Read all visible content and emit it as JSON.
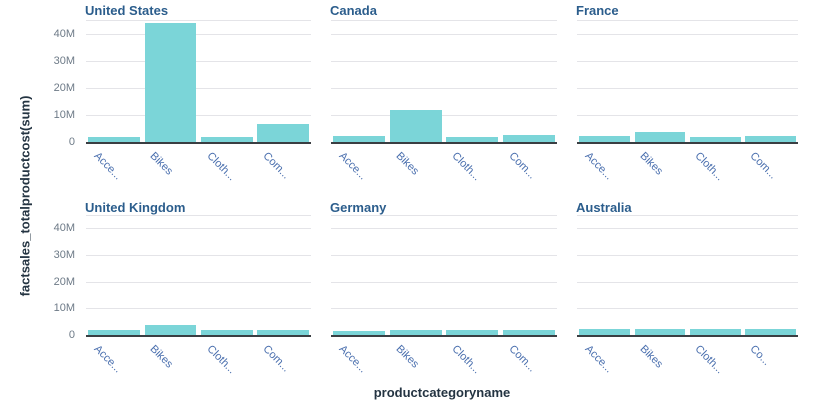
{
  "chart_data": {
    "type": "bar",
    "title": "",
    "xlabel": "productcategoryname",
    "ylabel": "factsales_totalproductcost(sum)",
    "ylim": [
      0,
      45000000
    ],
    "grid": true,
    "facet_layout": "2 rows x 3 columns",
    "yticks": [
      {
        "value": 0,
        "label": "0"
      },
      {
        "value": 10000000,
        "label": "10M"
      },
      {
        "value": 20000000,
        "label": "20M"
      },
      {
        "value": 30000000,
        "label": "30M"
      },
      {
        "value": 40000000,
        "label": "40M"
      }
    ],
    "panels": [
      {
        "title": "United States",
        "categories": [
          "Acce...",
          "Bikes",
          "Cloth...",
          "Com..."
        ],
        "values": [
          2000000,
          44000000,
          2000000,
          6800000
        ]
      },
      {
        "title": "Canada",
        "categories": [
          "Acce...",
          "Bikes",
          "Cloth...",
          "Com..."
        ],
        "values": [
          2200000,
          11800000,
          2000000,
          2600000
        ]
      },
      {
        "title": "France",
        "categories": [
          "Acce...",
          "Bikes",
          "Cloth...",
          "Com..."
        ],
        "values": [
          2200000,
          3700000,
          1900000,
          2100000
        ]
      },
      {
        "title": "United Kingdom",
        "categories": [
          "Acce...",
          "Bikes",
          "Cloth...",
          "Com..."
        ],
        "values": [
          1900000,
          3800000,
          1800000,
          1900000
        ]
      },
      {
        "title": "Germany",
        "categories": [
          "Acce...",
          "Bikes",
          "Cloth...",
          "Com..."
        ],
        "values": [
          1700000,
          1800000,
          1800000,
          1800000
        ]
      },
      {
        "title": "Australia",
        "categories": [
          "Acce...",
          "Bikes",
          "Cloth...",
          "Co..."
        ],
        "values": [
          2100000,
          2100000,
          2100000,
          2100000
        ]
      }
    ]
  },
  "colors": {
    "bar_fill": "#7bd5d8",
    "panel_title": "#2b5d8c",
    "axis_title": "#243442",
    "ytick_label": "#6d7a87",
    "xtick_label": "#4a6fae",
    "gridline": "#e4e4e8",
    "axis_line": "#3a3e42",
    "background": "#ffffff"
  }
}
